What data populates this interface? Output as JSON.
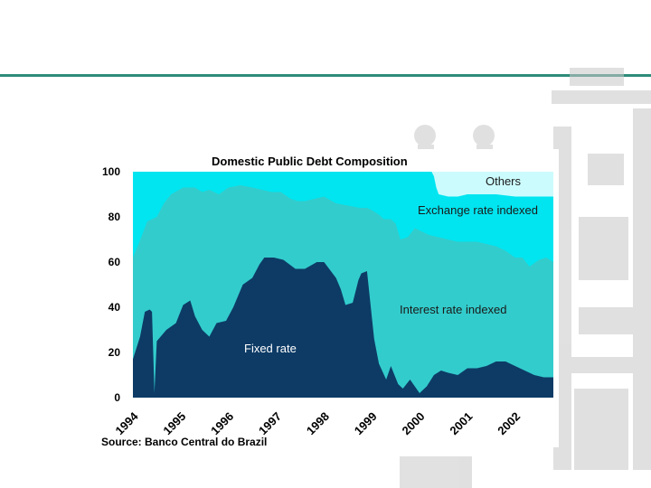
{
  "chart_data": {
    "type": "area",
    "stacked": true,
    "title": "Domestic Public Debt Composition",
    "source": "Source: Banco Central do Brazil",
    "ylim": [
      0,
      100
    ],
    "y_ticks": [
      "0",
      "20",
      "40",
      "60",
      "80",
      "100"
    ],
    "x_range": [
      1994.0,
      2002.8
    ],
    "x_ticks": [
      "1994",
      "1995",
      "1996",
      "1997",
      "1998",
      "1999",
      "2000",
      "2001",
      "2002"
    ],
    "colors": {
      "fixed": "#0d3b66",
      "interest": "#33cccc",
      "exchange": "#00e5f0",
      "others": "#ccfbfd"
    },
    "annotations": {
      "fixed": "Fixed rate",
      "interest": "Interest rate indexed",
      "exchange": "Exchange rate indexed",
      "others": "Others"
    },
    "series": [
      {
        "name": "Fixed rate",
        "key": "fixed",
        "x": [
          1994.0,
          1994.15,
          1994.25,
          1994.35,
          1994.4,
          1994.45,
          1994.5,
          1994.7,
          1994.9,
          1995.05,
          1995.2,
          1995.3,
          1995.45,
          1995.6,
          1995.75,
          1995.95,
          1996.1,
          1996.3,
          1996.5,
          1996.65,
          1996.75,
          1996.85,
          1996.95,
          1997.15,
          1997.4,
          1997.6,
          1997.85,
          1998.0,
          1998.25,
          1998.35,
          1998.45,
          1998.6,
          1998.72,
          1998.78,
          1998.9,
          1999.05,
          1999.15,
          1999.3,
          1999.4,
          1999.55,
          1999.65,
          1999.8,
          2000.0,
          2000.15,
          2000.3,
          2000.45,
          2000.6,
          2000.8,
          2001.0,
          2001.2,
          2001.4,
          2001.6,
          2001.8,
          2002.0,
          2002.2,
          2002.4,
          2002.6,
          2002.8
        ],
        "values": [
          17,
          27,
          38,
          39,
          38,
          2,
          25,
          30,
          33,
          41,
          43,
          36,
          30,
          27,
          33,
          34,
          40,
          50,
          53,
          59,
          62,
          62,
          62,
          61,
          57,
          57,
          60,
          60,
          53,
          48,
          41,
          42,
          52,
          55,
          56,
          26,
          15,
          8,
          14,
          6,
          4,
          8,
          2,
          5,
          10,
          12,
          11,
          10,
          13,
          13,
          14,
          16,
          16,
          14,
          12,
          10,
          9,
          9
        ]
      },
      {
        "name": "Interest rate indexed",
        "key": "interest",
        "x": [
          1994.0,
          1994.1,
          1994.3,
          1994.5,
          1994.65,
          1994.8,
          1995.05,
          1995.3,
          1995.45,
          1995.6,
          1995.8,
          1996.0,
          1996.25,
          1996.5,
          1996.7,
          1996.9,
          1997.1,
          1997.3,
          1997.45,
          1997.6,
          1997.8,
          1998.0,
          1998.25,
          1998.5,
          1998.75,
          1998.9,
          1999.0,
          1999.15,
          1999.25,
          1999.4,
          1999.5,
          1999.6,
          1999.75,
          1999.9,
          2000.0,
          2000.2,
          2000.4,
          2000.6,
          2000.8,
          2001.0,
          2001.2,
          2001.4,
          2001.6,
          2001.8,
          2002.0,
          2002.15,
          2002.3,
          2002.5,
          2002.65,
          2002.8
        ],
        "values": [
          62,
          67,
          78,
          80,
          86,
          90,
          93,
          93,
          91,
          92,
          90,
          93,
          94,
          93,
          92,
          91,
          91,
          88,
          87,
          87,
          88,
          89,
          86,
          85,
          84,
          84,
          83,
          81,
          79,
          79,
          77,
          70,
          71,
          75,
          74,
          72,
          71,
          70,
          69,
          69,
          69,
          68,
          67,
          65,
          62,
          62,
          58,
          61,
          62,
          60
        ]
      },
      {
        "name": "Exchange rate indexed",
        "key": "exchange",
        "x": [
          1994.0,
          1999.5,
          1999.6,
          1999.8,
          2000.0,
          2000.1,
          2000.25,
          2000.3,
          2000.35,
          2000.4,
          2000.6,
          2000.8,
          2001.0,
          2001.3,
          2001.6,
          2002.0,
          2002.4,
          2002.8
        ],
        "values": [
          100,
          100,
          100,
          100,
          100,
          100,
          100,
          98,
          93,
          90,
          89,
          89,
          90,
          90,
          90,
          89,
          89,
          89
        ]
      },
      {
        "name": "Others",
        "key": "others",
        "x": [
          1994.0,
          2002.8
        ],
        "values": [
          100,
          100
        ]
      }
    ]
  }
}
